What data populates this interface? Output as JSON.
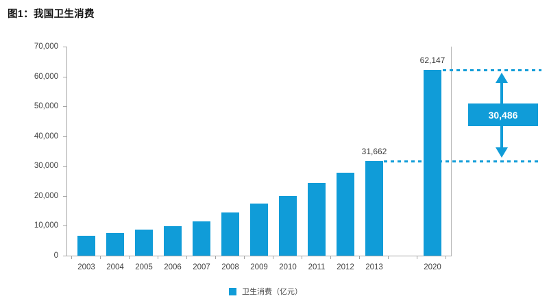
{
  "title": "图1：我国卫生消费",
  "colors": {
    "bar": "#109cd8",
    "axis": "#a3a3a3",
    "annotation": "#109cd8",
    "text": "#404040"
  },
  "legend": {
    "items": [
      {
        "label": "卫生消费（亿元）",
        "color": "#109cd8"
      }
    ]
  },
  "annotation": {
    "difference_box_text": "30,486",
    "between_categories": [
      "2013",
      "2020"
    ]
  },
  "chart_data": {
    "type": "bar",
    "title": "图1：我国卫生消费",
    "series_name": "卫生消费（亿元）",
    "categories": [
      "2003",
      "2004",
      "2005",
      "2006",
      "2007",
      "2008",
      "2009",
      "2010",
      "2011",
      "2012",
      "2013",
      "2020"
    ],
    "values": [
      6584,
      7590,
      8660,
      9843,
      11574,
      14535,
      17542,
      19980,
      24346,
      27847,
      31662,
      62147
    ],
    "data_labels": [
      {
        "category": "2013",
        "text": "31,662"
      },
      {
        "category": "2020",
        "text": "62,147"
      }
    ],
    "difference_annotation": {
      "text": "30,486",
      "value_high": 62147,
      "value_low": 31662
    },
    "xlabel": "",
    "ylabel": "",
    "ylim": [
      0,
      70000
    ],
    "ytick_interval": 10000,
    "ytick_labels": [
      "70,000",
      "60,000",
      "50,000",
      "40,000",
      "30,000",
      "20,000",
      "10,000",
      "0"
    ],
    "grid": false,
    "legend_position": "bottom"
  }
}
